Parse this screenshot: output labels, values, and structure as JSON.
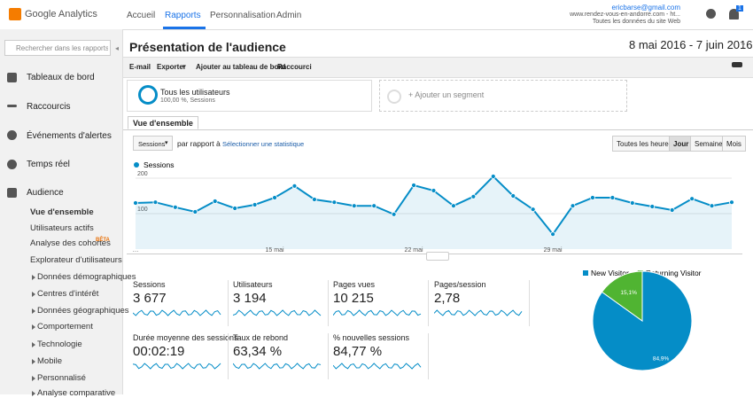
{
  "header": {
    "logo": "Google Analytics",
    "nav": [
      "Accueil",
      "Rapports",
      "Personnalisation",
      "Admin"
    ],
    "account": {
      "email": "ericbarse@gmail.com",
      "site": "www.rendez-vous-en-andorre.com - ht...",
      "view": "Toutes les données du site Web"
    },
    "notifications": "1"
  },
  "sidebar": {
    "search": "Rechercher dans les rapports et",
    "items": [
      "Tableaux de bord",
      "Raccourcis",
      "Événements d'alertes",
      "Temps réel",
      "Audience"
    ],
    "subitems": [
      "Vue d'ensemble",
      "Utilisateurs actifs",
      "Analyse des cohortes",
      "Explorateur d'utilisateurs",
      "Données démographiques",
      "Centres d'intérêt",
      "Données géographiques",
      "Comportement",
      "Technologie",
      "Mobile",
      "Personnalisé",
      "Analyse comparative"
    ],
    "beta": "BÊTA"
  },
  "toolbar": {
    "title": "Présentation de l'audience",
    "date_range": "8 mai 2016 - 7 juin 2016",
    "actions": [
      "E-mail",
      "Exporter",
      "Ajouter au tableau de bord",
      "Raccourci"
    ]
  },
  "segments": {
    "active_name": "Tous les utilisateurs",
    "active_detail": "100,00 %, Sessions",
    "add": "+ Ajouter un segment"
  },
  "tab": "Vue d'ensemble",
  "controls": {
    "metric": "Sessions",
    "compare": "par rapport à",
    "select": "Sélectionner une statistique",
    "periods": [
      "Toutes les heures",
      "Jour",
      "Semaine",
      "Mois"
    ],
    "active_period": 1
  },
  "metrics": [
    {
      "label": "Sessions",
      "value": "3 677"
    },
    {
      "label": "Utilisateurs",
      "value": "3 194"
    },
    {
      "label": "Pages vues",
      "value": "10 215"
    },
    {
      "label": "Pages/session",
      "value": "2,78"
    },
    {
      "label": "Durée moyenne des sessions",
      "value": "00:02:19"
    },
    {
      "label": "Taux de rebond",
      "value": "63,34 %"
    },
    {
      "label": "% nouvelles sessions",
      "value": "84,77 %"
    }
  ],
  "chart_data": [
    {
      "type": "line",
      "categories": [
        "…",
        null,
        null,
        null,
        null,
        null,
        null,
        "15 mai",
        null,
        null,
        null,
        null,
        null,
        null,
        "22 mai",
        null,
        null,
        null,
        null,
        null,
        null,
        "29 mai",
        null,
        null,
        null,
        null,
        null,
        null,
        null,
        null,
        null
      ],
      "series": [
        {
          "name": "Sessions",
          "color": "#058dc7",
          "values": [
            130,
            132,
            118,
            105,
            135,
            115,
            125,
            145,
            178,
            140,
            132,
            122,
            122,
            98,
            180,
            165,
            122,
            148,
            205,
            150,
            112,
            42,
            122,
            145,
            145,
            130,
            120,
            110,
            142,
            122,
            132
          ]
        }
      ],
      "ylim": [
        0,
        215
      ],
      "yticks": [
        100,
        200
      ],
      "grid": true
    },
    {
      "type": "pie",
      "categories": [
        "New Visitor",
        "Returning Visitor"
      ],
      "values": [
        84.9,
        15.1
      ],
      "value_labels": [
        "84,9%",
        "15,1%"
      ],
      "colors": [
        "#058dc7",
        "#50b432"
      ]
    }
  ]
}
